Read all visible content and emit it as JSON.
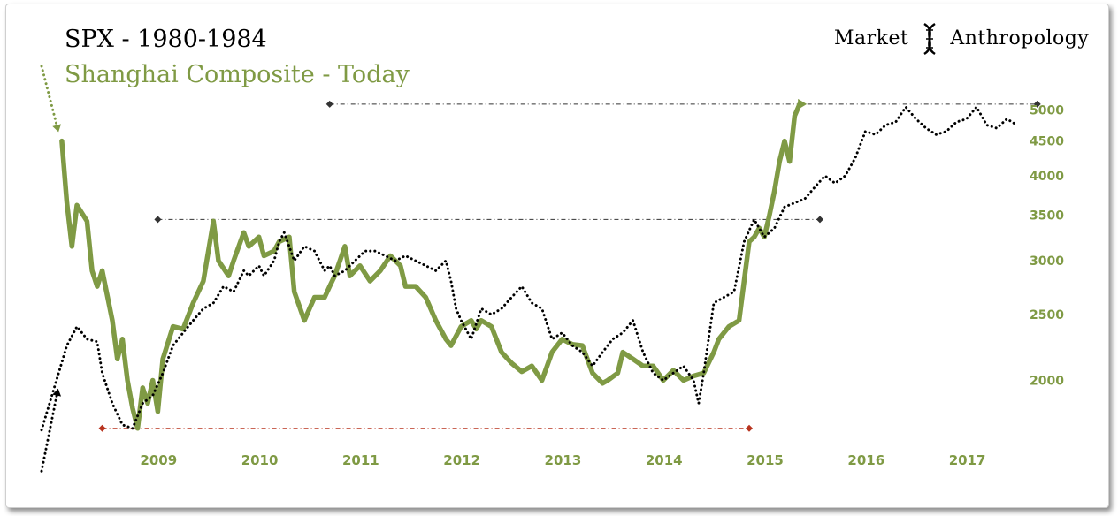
{
  "title": "SPX - 1980-1984",
  "subtitle": "Shanghai Composite - Today",
  "logo": {
    "left": "Market",
    "right": "Anthropology",
    "icon": "dna-helix-icon"
  },
  "colors": {
    "green": "#7f9a44",
    "black": "#000000",
    "red": "#b8341f",
    "gray": "#333333"
  },
  "chart_data": {
    "type": "line",
    "x_range": [
      2008.0,
      2017.8
    ],
    "y_range": [
      1600,
      5300
    ],
    "y_scale": "log",
    "x_ticks": [
      "2009",
      "2010",
      "2011",
      "2012",
      "2013",
      "2014",
      "2015",
      "2016",
      "2017"
    ],
    "y_ticks": [
      2000,
      2500,
      3000,
      3500,
      4000,
      4500,
      5000
    ],
    "grid": false,
    "series": [
      {
        "name": "Shanghai Composite - Today",
        "color": "#7f9a44",
        "style": "solid",
        "points": [
          [
            2008.2,
            4500
          ],
          [
            2008.25,
            3650
          ],
          [
            2008.3,
            3150
          ],
          [
            2008.35,
            3620
          ],
          [
            2008.45,
            3430
          ],
          [
            2008.5,
            2900
          ],
          [
            2008.55,
            2750
          ],
          [
            2008.6,
            2900
          ],
          [
            2008.7,
            2450
          ],
          [
            2008.75,
            2150
          ],
          [
            2008.8,
            2300
          ],
          [
            2008.85,
            2000
          ],
          [
            2008.9,
            1820
          ],
          [
            2008.95,
            1700
          ],
          [
            2009.0,
            1950
          ],
          [
            2009.05,
            1850
          ],
          [
            2009.1,
            2000
          ],
          [
            2009.15,
            1800
          ],
          [
            2009.2,
            2150
          ],
          [
            2009.3,
            2400
          ],
          [
            2009.4,
            2380
          ],
          [
            2009.5,
            2600
          ],
          [
            2009.6,
            2800
          ],
          [
            2009.7,
            3430
          ],
          [
            2009.75,
            3000
          ],
          [
            2009.85,
            2850
          ],
          [
            2009.9,
            3000
          ],
          [
            2010.0,
            3300
          ],
          [
            2010.05,
            3150
          ],
          [
            2010.15,
            3250
          ],
          [
            2010.2,
            3050
          ],
          [
            2010.3,
            3100
          ],
          [
            2010.35,
            3200
          ],
          [
            2010.45,
            3250
          ],
          [
            2010.5,
            2700
          ],
          [
            2010.6,
            2450
          ],
          [
            2010.65,
            2550
          ],
          [
            2010.7,
            2650
          ],
          [
            2010.8,
            2650
          ],
          [
            2010.85,
            2750
          ],
          [
            2010.9,
            2850
          ],
          [
            2011.0,
            3150
          ],
          [
            2011.05,
            2850
          ],
          [
            2011.15,
            2950
          ],
          [
            2011.25,
            2800
          ],
          [
            2011.35,
            2900
          ],
          [
            2011.45,
            3050
          ],
          [
            2011.55,
            2950
          ],
          [
            2011.6,
            2750
          ],
          [
            2011.7,
            2750
          ],
          [
            2011.8,
            2650
          ],
          [
            2011.9,
            2450
          ],
          [
            2012.0,
            2300
          ],
          [
            2012.05,
            2250
          ],
          [
            2012.15,
            2400
          ],
          [
            2012.25,
            2450
          ],
          [
            2012.3,
            2380
          ],
          [
            2012.35,
            2450
          ],
          [
            2012.45,
            2400
          ],
          [
            2012.55,
            2200
          ],
          [
            2012.65,
            2120
          ],
          [
            2012.75,
            2060
          ],
          [
            2012.85,
            2100
          ],
          [
            2012.95,
            2000
          ],
          [
            2013.05,
            2200
          ],
          [
            2013.15,
            2300
          ],
          [
            2013.25,
            2260
          ],
          [
            2013.35,
            2250
          ],
          [
            2013.45,
            2050
          ],
          [
            2013.55,
            1980
          ],
          [
            2013.6,
            2000
          ],
          [
            2013.7,
            2050
          ],
          [
            2013.75,
            2200
          ],
          [
            2013.85,
            2150
          ],
          [
            2013.95,
            2100
          ],
          [
            2014.05,
            2100
          ],
          [
            2014.15,
            2000
          ],
          [
            2014.25,
            2070
          ],
          [
            2014.35,
            2000
          ],
          [
            2014.45,
            2030
          ],
          [
            2014.55,
            2050
          ],
          [
            2014.65,
            2200
          ],
          [
            2014.7,
            2300
          ],
          [
            2014.8,
            2400
          ],
          [
            2014.9,
            2450
          ],
          [
            2014.95,
            2800
          ],
          [
            2015.0,
            3200
          ],
          [
            2015.05,
            3250
          ],
          [
            2015.1,
            3350
          ],
          [
            2015.15,
            3250
          ],
          [
            2015.2,
            3500
          ],
          [
            2015.25,
            3800
          ],
          [
            2015.3,
            4200
          ],
          [
            2015.35,
            4500
          ],
          [
            2015.4,
            4200
          ],
          [
            2015.45,
            4900
          ],
          [
            2015.5,
            5100
          ]
        ]
      },
      {
        "name": "SPX - 1980-1984",
        "color": "#000000",
        "style": "dotted",
        "points": [
          [
            2008.0,
            1690
          ],
          [
            2008.25,
            2250
          ],
          [
            2008.35,
            2400
          ],
          [
            2008.45,
            2300
          ],
          [
            2008.55,
            2280
          ],
          [
            2008.6,
            2050
          ],
          [
            2008.7,
            1850
          ],
          [
            2008.8,
            1720
          ],
          [
            2008.9,
            1700
          ],
          [
            2009.0,
            1850
          ],
          [
            2009.1,
            1900
          ],
          [
            2009.2,
            2050
          ],
          [
            2009.3,
            2250
          ],
          [
            2009.4,
            2350
          ],
          [
            2009.5,
            2450
          ],
          [
            2009.6,
            2550
          ],
          [
            2009.7,
            2600
          ],
          [
            2009.8,
            2750
          ],
          [
            2009.9,
            2700
          ],
          [
            2010.0,
            2900
          ],
          [
            2010.05,
            2850
          ],
          [
            2010.15,
            2950
          ],
          [
            2010.2,
            2850
          ],
          [
            2010.3,
            3000
          ],
          [
            2010.35,
            3200
          ],
          [
            2010.4,
            3300
          ],
          [
            2010.5,
            3000
          ],
          [
            2010.6,
            3150
          ],
          [
            2010.7,
            3100
          ],
          [
            2010.8,
            2900
          ],
          [
            2010.85,
            2950
          ],
          [
            2010.9,
            2850
          ],
          [
            2011.0,
            2900
          ],
          [
            2011.1,
            3000
          ],
          [
            2011.2,
            3100
          ],
          [
            2011.3,
            3100
          ],
          [
            2011.4,
            3050
          ],
          [
            2011.5,
            3000
          ],
          [
            2011.6,
            3050
          ],
          [
            2011.7,
            3000
          ],
          [
            2011.8,
            2950
          ],
          [
            2011.9,
            2900
          ],
          [
            2012.0,
            3000
          ],
          [
            2012.05,
            2800
          ],
          [
            2012.1,
            2550
          ],
          [
            2012.15,
            2450
          ],
          [
            2012.25,
            2300
          ],
          [
            2012.35,
            2550
          ],
          [
            2012.45,
            2500
          ],
          [
            2012.55,
            2550
          ],
          [
            2012.65,
            2650
          ],
          [
            2012.75,
            2750
          ],
          [
            2012.85,
            2600
          ],
          [
            2012.95,
            2550
          ],
          [
            2013.05,
            2300
          ],
          [
            2013.15,
            2350
          ],
          [
            2013.25,
            2250
          ],
          [
            2013.35,
            2200
          ],
          [
            2013.45,
            2100
          ],
          [
            2013.55,
            2200
          ],
          [
            2013.65,
            2300
          ],
          [
            2013.75,
            2350
          ],
          [
            2013.85,
            2450
          ],
          [
            2013.95,
            2200
          ],
          [
            2014.05,
            2050
          ],
          [
            2014.15,
            2000
          ],
          [
            2014.25,
            2050
          ],
          [
            2014.35,
            2100
          ],
          [
            2014.45,
            2000
          ],
          [
            2014.5,
            1850
          ],
          [
            2014.55,
            2050
          ],
          [
            2014.65,
            2600
          ],
          [
            2014.75,
            2650
          ],
          [
            2014.85,
            2700
          ],
          [
            2014.95,
            3200
          ],
          [
            2015.05,
            3450
          ],
          [
            2015.15,
            3250
          ],
          [
            2015.25,
            3350
          ],
          [
            2015.35,
            3600
          ],
          [
            2015.45,
            3650
          ],
          [
            2015.55,
            3700
          ],
          [
            2015.65,
            3850
          ],
          [
            2015.75,
            4000
          ],
          [
            2015.85,
            3900
          ],
          [
            2015.95,
            4000
          ],
          [
            2016.05,
            4250
          ],
          [
            2016.15,
            4650
          ],
          [
            2016.25,
            4600
          ],
          [
            2016.35,
            4750
          ],
          [
            2016.45,
            4800
          ],
          [
            2016.55,
            5050
          ],
          [
            2016.65,
            4850
          ],
          [
            2016.75,
            4700
          ],
          [
            2016.85,
            4600
          ],
          [
            2016.95,
            4650
          ],
          [
            2017.05,
            4800
          ],
          [
            2017.15,
            4850
          ],
          [
            2017.25,
            5050
          ],
          [
            2017.35,
            4750
          ],
          [
            2017.45,
            4700
          ],
          [
            2017.55,
            4850
          ],
          [
            2017.65,
            4750
          ]
        ]
      }
    ],
    "reference_lines": [
      {
        "y": 5100,
        "x": [
          2010.85,
          2017.85
        ],
        "color": "#333333"
      },
      {
        "y": 3450,
        "x": [
          2009.15,
          2015.7
        ],
        "color": "#333333"
      },
      {
        "y": 1700,
        "x": [
          2008.6,
          2015.0
        ],
        "color": "#b8341f"
      }
    ],
    "annotations": [
      {
        "type": "arrow",
        "color": "#7f9a44",
        "style": "dotted",
        "from": [
          2008.0,
          5800
        ],
        "to": [
          2008.15,
          4750
        ]
      },
      {
        "type": "arrow",
        "color": "#000000",
        "style": "dotted",
        "from": [
          2008.0,
          1470
        ],
        "to": [
          2008.15,
          1900
        ]
      }
    ]
  }
}
